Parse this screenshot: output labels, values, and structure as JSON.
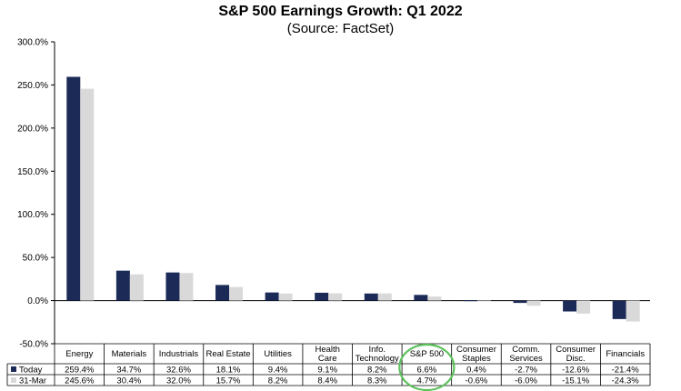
{
  "chart_data": {
    "type": "bar",
    "title": "S&P 500 Earnings Growth: Q1 2022",
    "subtitle": "(Source: FactSet)",
    "categories": [
      [
        "Energy"
      ],
      [
        "Materials"
      ],
      [
        "Industrials"
      ],
      [
        "Real Estate"
      ],
      [
        "Utilities"
      ],
      [
        "Health",
        "Care"
      ],
      [
        "Info.",
        "Technology"
      ],
      [
        "S&P 500"
      ],
      [
        "Consumer",
        "Staples"
      ],
      [
        "Comm.",
        "Services"
      ],
      [
        "Consumer",
        "Disc."
      ],
      [
        "Financials"
      ]
    ],
    "series": [
      {
        "name": "Today",
        "color": "#1b2a57",
        "values": [
          259.4,
          34.7,
          32.6,
          18.1,
          9.4,
          9.1,
          8.2,
          6.6,
          0.4,
          -2.7,
          -12.6,
          -21.4
        ],
        "labels": [
          "259.4%",
          "34.7%",
          "32.6%",
          "18.1%",
          "9.4%",
          "9.1%",
          "8.2%",
          "6.6%",
          "0.4%",
          "-2.7%",
          "-12.6%",
          "-21.4%"
        ]
      },
      {
        "name": "31-Mar",
        "color": "#d9d9d9",
        "values": [
          245.6,
          30.4,
          32.0,
          15.7,
          8.2,
          8.4,
          8.3,
          4.7,
          -0.6,
          -6.0,
          -15.1,
          -24.3
        ],
        "labels": [
          "245.6%",
          "30.4%",
          "32.0%",
          "15.7%",
          "8.2%",
          "8.4%",
          "8.3%",
          "4.7%",
          "-0.6%",
          "-6.0%",
          "-15.1%",
          "-24.3%"
        ]
      }
    ],
    "ylim": [
      -50,
      300
    ],
    "yticks": [
      300,
      250,
      200,
      150,
      100,
      50,
      0,
      -50
    ],
    "ytick_labels": [
      "300.0%",
      "250.0%",
      "200.0%",
      "150.0%",
      "100.0%",
      "50.0%",
      "0.0%",
      "-50.0%"
    ],
    "grid": false,
    "legend": "data-table",
    "highlight": {
      "category_index": 7,
      "color": "#5cc15c"
    }
  }
}
